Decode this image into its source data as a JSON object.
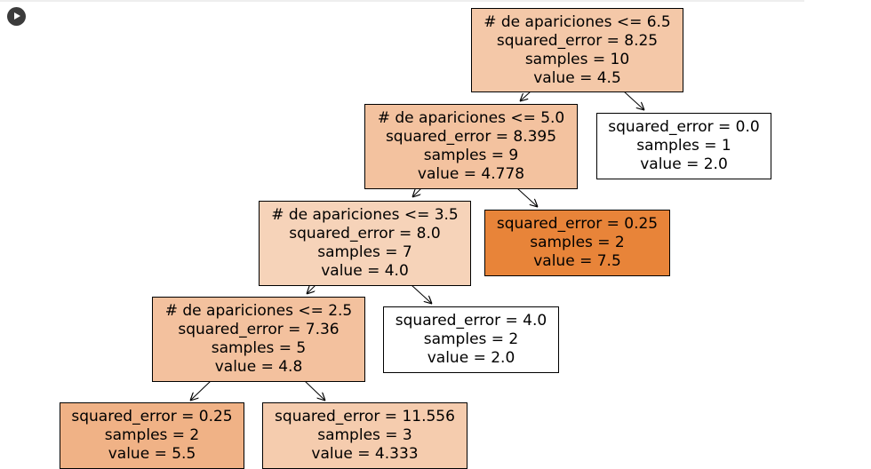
{
  "tree": {
    "nodes": [
      {
        "id": "n0",
        "lines": [
          "# de apariciones <= 6.5",
          "squared_error = 8.25",
          "samples = 10",
          "value = 4.5"
        ],
        "fill": "#f4c8a8"
      },
      {
        "id": "n1",
        "lines": [
          "# de apariciones <= 5.0",
          "squared_error = 8.395",
          "samples = 9",
          "value = 4.778"
        ],
        "fill": "#f3c29f"
      },
      {
        "id": "n2",
        "lines": [
          "squared_error = 0.0",
          "samples = 1",
          "value = 2.0"
        ],
        "fill": "#ffffff"
      },
      {
        "id": "n3",
        "lines": [
          "# de apariciones <= 3.5",
          "squared_error = 8.0",
          "samples = 7",
          "value = 4.0"
        ],
        "fill": "#f6d3b9"
      },
      {
        "id": "n4",
        "lines": [
          "squared_error = 0.25",
          "samples = 2",
          "value = 7.5"
        ],
        "fill": "#e88439"
      },
      {
        "id": "n5",
        "lines": [
          "# de apariciones <= 2.5",
          "squared_error = 7.36",
          "samples = 5",
          "value = 4.8"
        ],
        "fill": "#f3c19e"
      },
      {
        "id": "n6",
        "lines": [
          "squared_error = 4.0",
          "samples = 2",
          "value = 2.0"
        ],
        "fill": "#ffffff"
      },
      {
        "id": "n7",
        "lines": [
          "squared_error = 0.25",
          "samples = 2",
          "value = 5.5"
        ],
        "fill": "#f0b286"
      },
      {
        "id": "n8",
        "lines": [
          "squared_error = 11.556",
          "samples = 3",
          "value = 4.333"
        ],
        "fill": "#f5ccae"
      }
    ]
  }
}
